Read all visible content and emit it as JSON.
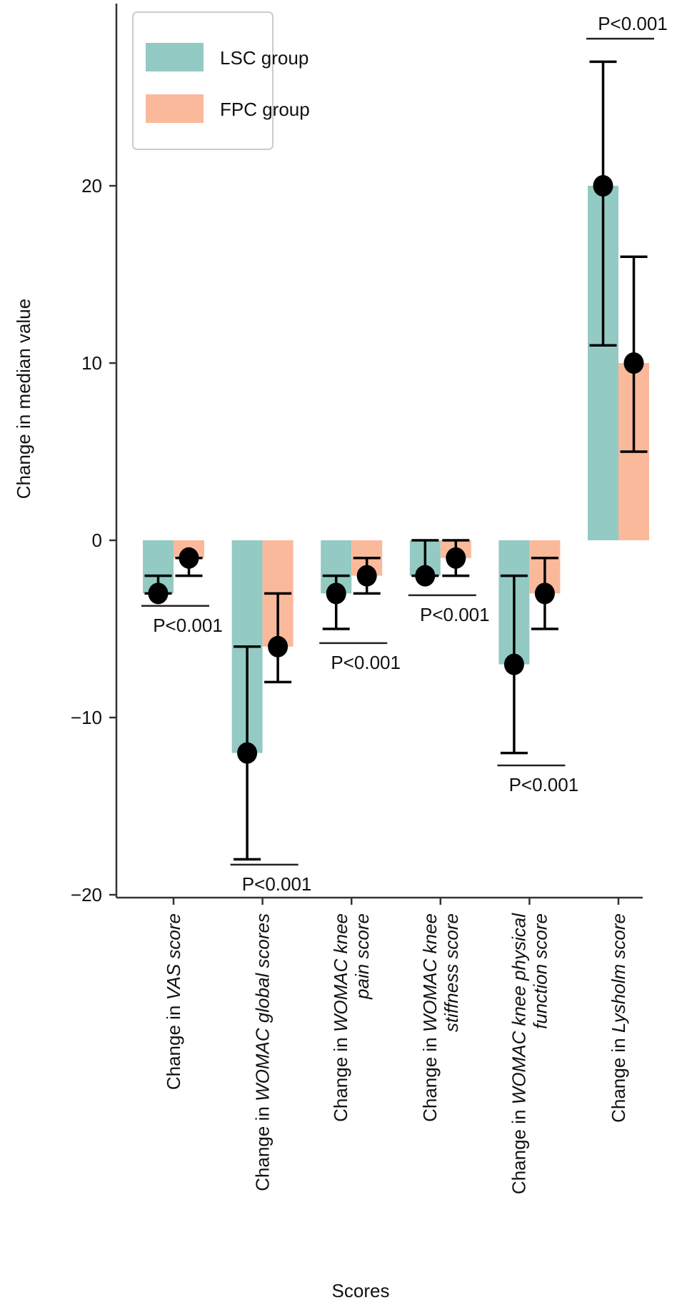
{
  "chart_data": {
    "type": "bar",
    "title": "",
    "xlabel": "Scores",
    "ylabel": "Change in median value",
    "ylim": [
      -20.2,
      30
    ],
    "yticks": [
      -20,
      -10,
      0,
      10,
      20
    ],
    "ytick_labels": [
      "−20",
      "−10",
      "0",
      "10",
      "20"
    ],
    "legend": {
      "position": "top-left",
      "entries": [
        "LSC group",
        "FPC group"
      ]
    },
    "colors": {
      "LSC group": "#93cac3",
      "FPC group": "#fbb99c",
      "marker": "#000000"
    },
    "categories": [
      [
        [
          {
            "t": "Change in ",
            "i": false
          },
          {
            "t": "VAS score",
            "i": true
          }
        ]
      ],
      [
        [
          {
            "t": "Change in ",
            "i": false
          },
          {
            "t": "WOMAC global scores",
            "i": true
          }
        ]
      ],
      [
        [
          {
            "t": "Change in ",
            "i": false
          },
          {
            "t": "WOMAC knee",
            "i": true
          }
        ],
        [
          {
            "t": "pain score",
            "i": true
          }
        ]
      ],
      [
        [
          {
            "t": "Change in ",
            "i": false
          },
          {
            "t": "WOMAC knee",
            "i": true
          }
        ],
        [
          {
            "t": "stiffness score",
            "i": true
          }
        ]
      ],
      [
        [
          {
            "t": "Change in ",
            "i": false
          },
          {
            "t": "WOMAC knee physical",
            "i": true
          }
        ],
        [
          {
            "t": "function score",
            "i": true
          }
        ]
      ],
      [
        [
          {
            "t": "Change in ",
            "i": false
          },
          {
            "t": "Lysholm score",
            "i": true
          }
        ]
      ]
    ],
    "series": [
      {
        "name": "LSC group",
        "values": [
          -3,
          -12,
          -3,
          -2,
          -7,
          20
        ],
        "median": [
          -3,
          -12,
          -3,
          -2,
          -7,
          20
        ],
        "err_low": [
          -3,
          -18,
          -5,
          -2,
          -12,
          11
        ],
        "err_high": [
          -2,
          -6,
          -2,
          0,
          -2,
          27
        ]
      },
      {
        "name": "FPC group",
        "values": [
          -1,
          -6,
          -2,
          -1,
          -3,
          10
        ],
        "median": [
          -1,
          -6,
          -2,
          -1,
          -3,
          10
        ],
        "err_low": [
          -2,
          -8,
          -3,
          -2,
          -5,
          5
        ],
        "err_high": [
          -1,
          -3,
          -1,
          0,
          -1,
          16
        ]
      }
    ],
    "annotations": [
      {
        "text": "P<0.001",
        "y": -3.7,
        "side": "below"
      },
      {
        "text": "P<0.001",
        "y": -18.3,
        "side": "below"
      },
      {
        "text": "P<0.001",
        "y": -5.8,
        "side": "below"
      },
      {
        "text": "P<0.001",
        "y": -3.1,
        "side": "below"
      },
      {
        "text": "P<0.001",
        "y": -12.7,
        "side": "below"
      },
      {
        "text": "P<0.001",
        "y": 28.3,
        "side": "above"
      }
    ],
    "grid": false
  }
}
